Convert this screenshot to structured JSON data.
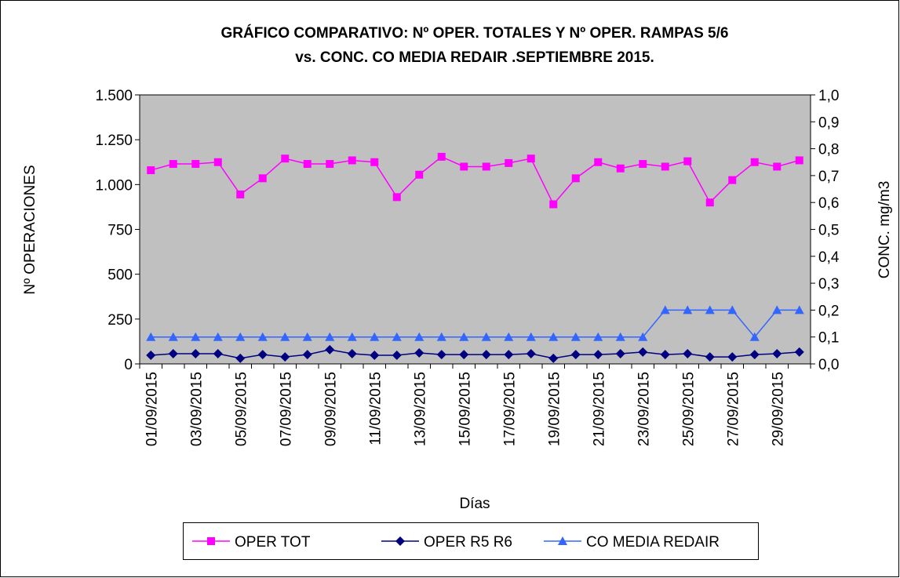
{
  "chart_data": {
    "type": "line",
    "title": [
      "GRÁFICO COMPARATIVO: Nº OPER. TOTALES Y Nº OPER. RAMPAS 5/6",
      "vs. CONC. CO MEDIA REDAIR .SEPTIEMBRE 2015."
    ],
    "x_label": "Días",
    "y_label": "Nº OPERACIONES",
    "y2_label": "CONC. mg/m3",
    "categories": [
      "01/09/2015",
      null,
      "03/09/2015",
      null,
      "05/09/2015",
      null,
      "07/09/2015",
      null,
      "09/09/2015",
      null,
      "11/09/2015",
      null,
      "13/09/2015",
      null,
      "15/09/2015",
      null,
      "17/09/2015",
      null,
      "19/09/2015",
      null,
      "21/09/2015",
      null,
      "23/09/2015",
      null,
      "25/09/2015",
      null,
      "27/09/2015",
      null,
      "29/09/2015",
      null
    ],
    "ylim": [
      0,
      1500
    ],
    "yticks": [
      {
        "value": 0,
        "label": "0"
      },
      {
        "value": 250,
        "label": "250"
      },
      {
        "value": 500,
        "label": "500"
      },
      {
        "value": 750,
        "label": "750"
      },
      {
        "value": 1000,
        "label": "1.000"
      },
      {
        "value": 1250,
        "label": "1.250"
      },
      {
        "value": 1500,
        "label": "1.500"
      }
    ],
    "y2lim": [
      0,
      1
    ],
    "y2ticks": [
      {
        "value": 0,
        "label": "0,0"
      },
      {
        "value": 0.1,
        "label": "0,1"
      },
      {
        "value": 0.2,
        "label": "0,2"
      },
      {
        "value": 0.3,
        "label": "0,3"
      },
      {
        "value": 0.4,
        "label": "0,4"
      },
      {
        "value": 0.5,
        "label": "0,5"
      },
      {
        "value": 0.6,
        "label": "0,6"
      },
      {
        "value": 0.7,
        "label": "0,7"
      },
      {
        "value": 0.8,
        "label": "0,8"
      },
      {
        "value": 0.9,
        "label": "0,9"
      },
      {
        "value": 1,
        "label": "1,0"
      }
    ],
    "plot_background": "#c0c0c0",
    "legend": "bottom",
    "series": [
      {
        "name": "OPER TOT",
        "color": "#ff00ff",
        "marker": "square",
        "values": [
          1080,
          1115,
          1115,
          1125,
          945,
          1035,
          1145,
          1115,
          1115,
          1135,
          1125,
          930,
          1055,
          1155,
          1100,
          1100,
          1120,
          1145,
          890,
          1035,
          1125,
          1090,
          1115,
          1100,
          1130,
          900,
          1025,
          1125,
          1100,
          1135
        ]
      },
      {
        "name": "OPER R5 R6",
        "color": "#000080",
        "marker": "diamond",
        "values": [
          48,
          57,
          57,
          57,
          31,
          52,
          39,
          52,
          79,
          57,
          48,
          48,
          61,
          52,
          52,
          52,
          52,
          57,
          31,
          52,
          52,
          57,
          66,
          52,
          57,
          39,
          39,
          52,
          57,
          66
        ]
      },
      {
        "name": "CO MEDIA REDAIR",
        "color": "#3366ff",
        "marker": "triangle",
        "axis": "y2",
        "values": [
          0.1,
          0.1,
          0.1,
          0.1,
          0.1,
          0.1,
          0.1,
          0.1,
          0.1,
          0.1,
          0.1,
          0.1,
          0.1,
          0.1,
          0.1,
          0.1,
          0.1,
          0.1,
          0.1,
          0.1,
          0.1,
          0.1,
          0.1,
          0.2,
          0.2,
          0.2,
          0.2,
          0.1,
          0.2,
          0.2
        ]
      }
    ]
  }
}
